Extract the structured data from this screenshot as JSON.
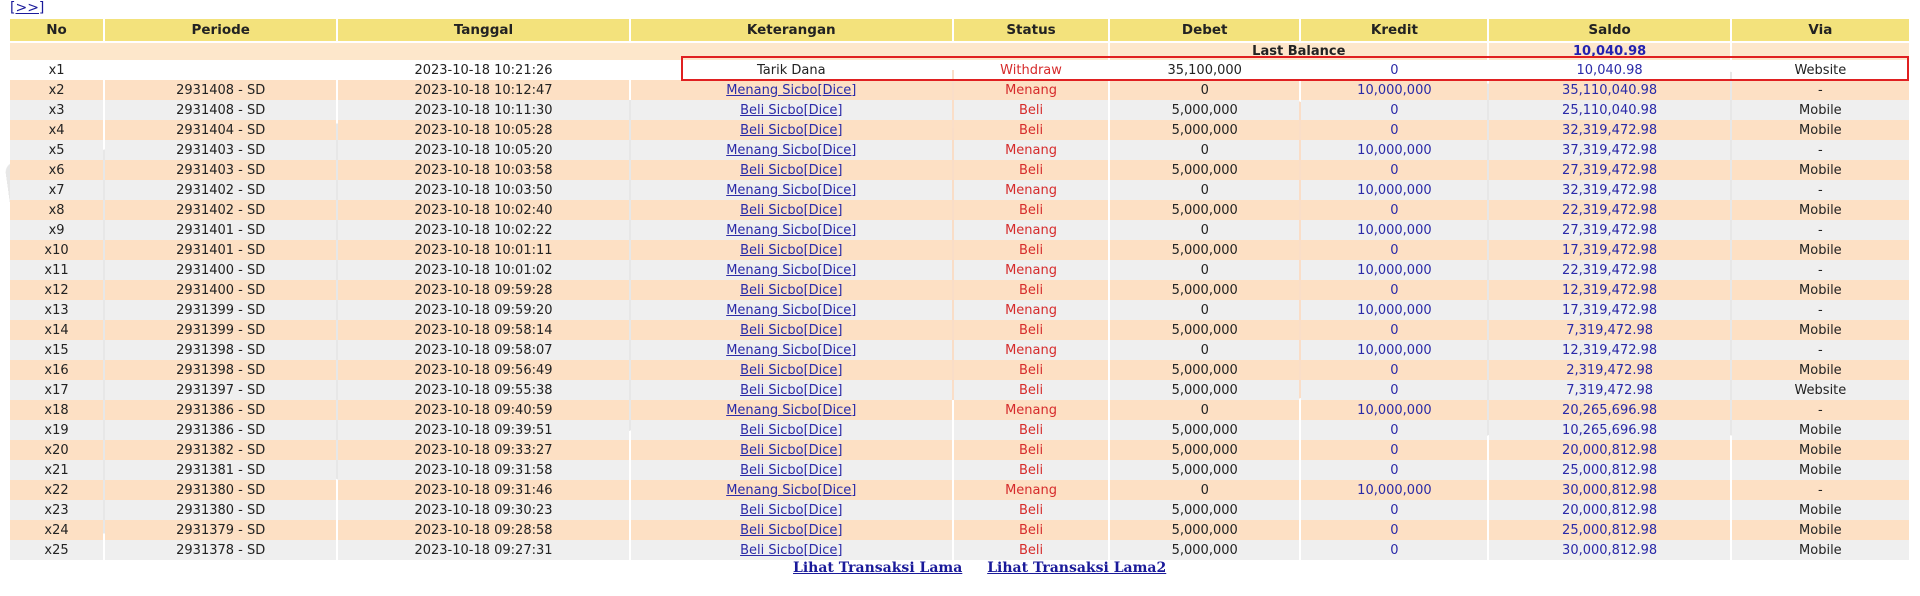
{
  "nav": {
    "next_label": "[>>]"
  },
  "columns": [
    "No",
    "Periode",
    "Tanggal",
    "Keterangan",
    "Status",
    "Debet",
    "Kredit",
    "Saldo",
    "Via"
  ],
  "last_balance": {
    "label": "Last Balance",
    "value": "10,040.98"
  },
  "rows": [
    {
      "no": "x1",
      "periode": "",
      "tanggal": "2023-10-18 10:21:26",
      "ket": "Tarik Dana",
      "status": "Withdraw",
      "debet": "35,100,000",
      "kredit": "0",
      "saldo": "10,040.98",
      "via": "Website"
    },
    {
      "no": "x2",
      "periode": "2931408 - SD",
      "tanggal": "2023-10-18 10:12:47",
      "ket": "Menang Sicbo[Dice]",
      "status": "Menang",
      "debet": "0",
      "kredit": "10,000,000",
      "saldo": "35,110,040.98",
      "via": "-"
    },
    {
      "no": "x3",
      "periode": "2931408 - SD",
      "tanggal": "2023-10-18 10:11:30",
      "ket": "Beli Sicbo[Dice]",
      "status": "Beli",
      "debet": "5,000,000",
      "kredit": "0",
      "saldo": "25,110,040.98",
      "via": "Mobile"
    },
    {
      "no": "x4",
      "periode": "2931404 - SD",
      "tanggal": "2023-10-18 10:05:28",
      "ket": "Beli Sicbo[Dice]",
      "status": "Beli",
      "debet": "5,000,000",
      "kredit": "0",
      "saldo": "32,319,472.98",
      "via": "Mobile"
    },
    {
      "no": "x5",
      "periode": "2931403 - SD",
      "tanggal": "2023-10-18 10:05:20",
      "ket": "Menang Sicbo[Dice]",
      "status": "Menang",
      "debet": "0",
      "kredit": "10,000,000",
      "saldo": "37,319,472.98",
      "via": "-"
    },
    {
      "no": "x6",
      "periode": "2931403 - SD",
      "tanggal": "2023-10-18 10:03:58",
      "ket": "Beli Sicbo[Dice]",
      "status": "Beli",
      "debet": "5,000,000",
      "kredit": "0",
      "saldo": "27,319,472.98",
      "via": "Mobile"
    },
    {
      "no": "x7",
      "periode": "2931402 - SD",
      "tanggal": "2023-10-18 10:03:50",
      "ket": "Menang Sicbo[Dice]",
      "status": "Menang",
      "debet": "0",
      "kredit": "10,000,000",
      "saldo": "32,319,472.98",
      "via": "-"
    },
    {
      "no": "x8",
      "periode": "2931402 - SD",
      "tanggal": "2023-10-18 10:02:40",
      "ket": "Beli Sicbo[Dice]",
      "status": "Beli",
      "debet": "5,000,000",
      "kredit": "0",
      "saldo": "22,319,472.98",
      "via": "Mobile"
    },
    {
      "no": "x9",
      "periode": "2931401 - SD",
      "tanggal": "2023-10-18 10:02:22",
      "ket": "Menang Sicbo[Dice]",
      "status": "Menang",
      "debet": "0",
      "kredit": "10,000,000",
      "saldo": "27,319,472.98",
      "via": "-"
    },
    {
      "no": "x10",
      "periode": "2931401 - SD",
      "tanggal": "2023-10-18 10:01:11",
      "ket": "Beli Sicbo[Dice]",
      "status": "Beli",
      "debet": "5,000,000",
      "kredit": "0",
      "saldo": "17,319,472.98",
      "via": "Mobile"
    },
    {
      "no": "x11",
      "periode": "2931400 - SD",
      "tanggal": "2023-10-18 10:01:02",
      "ket": "Menang Sicbo[Dice]",
      "status": "Menang",
      "debet": "0",
      "kredit": "10,000,000",
      "saldo": "22,319,472.98",
      "via": "-"
    },
    {
      "no": "x12",
      "periode": "2931400 - SD",
      "tanggal": "2023-10-18 09:59:28",
      "ket": "Beli Sicbo[Dice]",
      "status": "Beli",
      "debet": "5,000,000",
      "kredit": "0",
      "saldo": "12,319,472.98",
      "via": "Mobile"
    },
    {
      "no": "x13",
      "periode": "2931399 - SD",
      "tanggal": "2023-10-18 09:59:20",
      "ket": "Menang Sicbo[Dice]",
      "status": "Menang",
      "debet": "0",
      "kredit": "10,000,000",
      "saldo": "17,319,472.98",
      "via": "-"
    },
    {
      "no": "x14",
      "periode": "2931399 - SD",
      "tanggal": "2023-10-18 09:58:14",
      "ket": "Beli Sicbo[Dice]",
      "status": "Beli",
      "debet": "5,000,000",
      "kredit": "0",
      "saldo": "7,319,472.98",
      "via": "Mobile"
    },
    {
      "no": "x15",
      "periode": "2931398 - SD",
      "tanggal": "2023-10-18 09:58:07",
      "ket": "Menang Sicbo[Dice]",
      "status": "Menang",
      "debet": "0",
      "kredit": "10,000,000",
      "saldo": "12,319,472.98",
      "via": "-"
    },
    {
      "no": "x16",
      "periode": "2931398 - SD",
      "tanggal": "2023-10-18 09:56:49",
      "ket": "Beli Sicbo[Dice]",
      "status": "Beli",
      "debet": "5,000,000",
      "kredit": "0",
      "saldo": "2,319,472.98",
      "via": "Mobile"
    },
    {
      "no": "x17",
      "periode": "2931397 - SD",
      "tanggal": "2023-10-18 09:55:38",
      "ket": "Beli Sicbo[Dice]",
      "status": "Beli",
      "debet": "5,000,000",
      "kredit": "0",
      "saldo": "7,319,472.98",
      "via": "Website"
    },
    {
      "no": "x18",
      "periode": "2931386 - SD",
      "tanggal": "2023-10-18 09:40:59",
      "ket": "Menang Sicbo[Dice]",
      "status": "Menang",
      "debet": "0",
      "kredit": "10,000,000",
      "saldo": "20,265,696.98",
      "via": "-"
    },
    {
      "no": "x19",
      "periode": "2931386 - SD",
      "tanggal": "2023-10-18 09:39:51",
      "ket": "Beli Sicbo[Dice]",
      "status": "Beli",
      "debet": "5,000,000",
      "kredit": "0",
      "saldo": "10,265,696.98",
      "via": "Mobile"
    },
    {
      "no": "x20",
      "periode": "2931382 - SD",
      "tanggal": "2023-10-18 09:33:27",
      "ket": "Beli Sicbo[Dice]",
      "status": "Beli",
      "debet": "5,000,000",
      "kredit": "0",
      "saldo": "20,000,812.98",
      "via": "Mobile"
    },
    {
      "no": "x21",
      "periode": "2931381 - SD",
      "tanggal": "2023-10-18 09:31:58",
      "ket": "Beli Sicbo[Dice]",
      "status": "Beli",
      "debet": "5,000,000",
      "kredit": "0",
      "saldo": "25,000,812.98",
      "via": "Mobile"
    },
    {
      "no": "x22",
      "periode": "2931380 - SD",
      "tanggal": "2023-10-18 09:31:46",
      "ket": "Menang Sicbo[Dice]",
      "status": "Menang",
      "debet": "0",
      "kredit": "10,000,000",
      "saldo": "30,000,812.98",
      "via": "-"
    },
    {
      "no": "x23",
      "periode": "2931380 - SD",
      "tanggal": "2023-10-18 09:30:23",
      "ket": "Beli Sicbo[Dice]",
      "status": "Beli",
      "debet": "5,000,000",
      "kredit": "0",
      "saldo": "20,000,812.98",
      "via": "Mobile"
    },
    {
      "no": "x24",
      "periode": "2931379 - SD",
      "tanggal": "2023-10-18 09:28:58",
      "ket": "Beli Sicbo[Dice]",
      "status": "Beli",
      "debet": "5,000,000",
      "kredit": "0",
      "saldo": "25,000,812.98",
      "via": "Mobile"
    },
    {
      "no": "x25",
      "periode": "2931378 - SD",
      "tanggal": "2023-10-18 09:27:31",
      "ket": "Beli Sicbo[Dice]",
      "status": "Beli",
      "debet": "5,000,000",
      "kredit": "0",
      "saldo": "30,000,812.98",
      "via": "Mobile"
    }
  ],
  "footer": {
    "link1": "Lihat Transaksi Lama",
    "link2": "Lihat Transaksi Lama2"
  },
  "colors": {
    "header_bg": "#f3e27c",
    "row_odd": "#efefef",
    "row_even": "#fde0c4",
    "status_red": "#d62b2b",
    "link_blue": "#2a2aa8",
    "highlight_border": "#e02020"
  }
}
